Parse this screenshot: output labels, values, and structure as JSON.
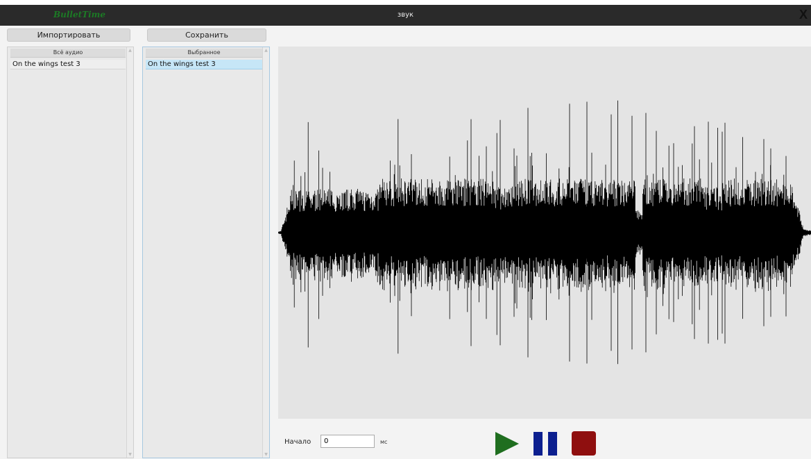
{
  "window": {
    "app_name": "BulletTime",
    "title": "звук",
    "close_label": "X"
  },
  "toolbar": {
    "import_label": "Импортировать",
    "save_label": "Сохранить"
  },
  "all_audio": {
    "header": "Всё аудио",
    "items": [
      "On the wings test 3"
    ]
  },
  "selected_audio": {
    "header": "Выбранное",
    "items": [
      "On the wings test 3"
    ]
  },
  "playback": {
    "start_label": "Начало",
    "start_value": "0",
    "unit": "мс"
  },
  "icons": {
    "play": "play-icon",
    "pause": "pause-icon",
    "stop": "stop-icon",
    "play_color": "#1f6e1f",
    "pause_color": "#0c1f8f",
    "stop_color": "#8f0f0f"
  }
}
